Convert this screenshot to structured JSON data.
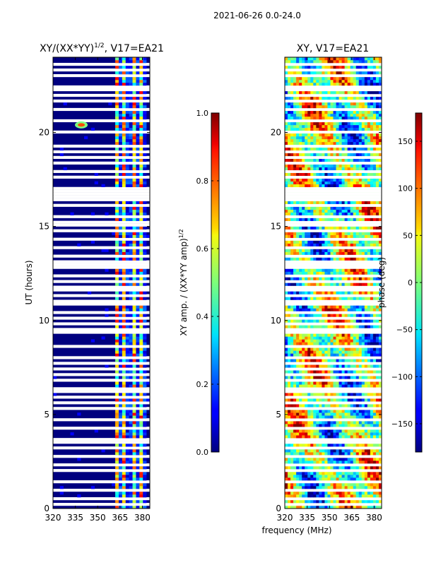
{
  "suptitle": "2021-06-26 0.0-24.0",
  "colors": {
    "background": "#00007f",
    "white": "#ffffff"
  },
  "chart_data": [
    {
      "type": "heatmap",
      "id": "amp",
      "title_prefix": "XY/(XX*YY)",
      "title_sup": "1/2",
      "title_suffix": ", V17=EA21",
      "xlabel": "",
      "ylabel": "UT (hours)",
      "xlim": [
        320,
        385
      ],
      "ylim": [
        0,
        24
      ],
      "xticks": [
        "320",
        "335",
        "350",
        "365",
        "380"
      ],
      "xtick_values": [
        320,
        335,
        350,
        365,
        380
      ],
      "yticks": [
        "0",
        "5",
        "10",
        "15",
        "20"
      ],
      "ytick_values": [
        0,
        5,
        10,
        15,
        20
      ],
      "colorbar": {
        "label_prefix": "XY amp. / (XX*YY amp)",
        "label_sup": "1/2",
        "range": [
          0.0,
          1.0
        ],
        "ticks": [
          "0.0",
          "0.2",
          "0.4",
          "0.6",
          "0.8",
          "1.0"
        ],
        "tick_values": [
          0.0,
          0.2,
          0.4,
          0.6,
          0.8,
          1.0
        ],
        "colormap": "jet"
      },
      "notes": "Amplitude near 0 for 320-362 MHz; bright bands (0.4-0.9) between ~362 and ~382 MHz; bright spot near 339 MHz at ~20.4 UT."
    },
    {
      "type": "heatmap",
      "id": "phase",
      "title": "XY, V17=EA21",
      "xlabel": "frequency (MHz)",
      "ylabel": "",
      "xlim": [
        320,
        385
      ],
      "ylim": [
        0,
        24
      ],
      "xticks": [
        "320",
        "335",
        "350",
        "365",
        "380"
      ],
      "xtick_values": [
        320,
        335,
        350,
        365,
        380
      ],
      "yticks": [
        "0",
        "5",
        "10",
        "15",
        "20"
      ],
      "ytick_values": [
        0,
        5,
        10,
        15,
        20
      ],
      "colorbar": {
        "label": "phase (deg)",
        "range": [
          -180,
          180
        ],
        "ticks": [
          "−150",
          "−100",
          "−50",
          "0",
          "50",
          "100",
          "150"
        ],
        "tick_values": [
          -150,
          -100,
          -50,
          0,
          50,
          100,
          150
        ],
        "colormap": "jet"
      },
      "notes": "Phase noise across all frequencies, values spanning -180 to 180 degrees."
    }
  ],
  "gaps_ut": [
    0.25,
    0.55,
    1.0,
    1.45,
    1.95,
    2.3,
    2.8,
    3.3,
    3.45,
    3.6,
    4.25,
    4.8,
    5.35,
    5.65,
    5.85,
    6.2,
    6.35,
    6.75,
    7.05,
    7.45,
    7.65,
    8.05,
    8.55,
    9.35,
    9.55,
    9.75,
    10.05,
    10.45,
    10.85,
    11.05,
    11.35,
    11.55,
    11.75,
    12.05,
    12.35,
    12.75,
    12.95,
    13.15,
    13.45,
    13.95,
    14.25,
    14.75,
    15.05,
    15.25,
    15.55,
    16.05,
    16.15,
    16.45,
    16.55,
    16.65,
    16.85,
    17.05,
    17.65,
    17.85,
    17.95,
    18.45,
    18.65,
    18.95,
    19.25,
    20.05,
    20.65,
    21.25,
    21.65,
    21.95,
    22.25,
    22.45,
    22.95,
    23.25,
    23.55
  ]
}
